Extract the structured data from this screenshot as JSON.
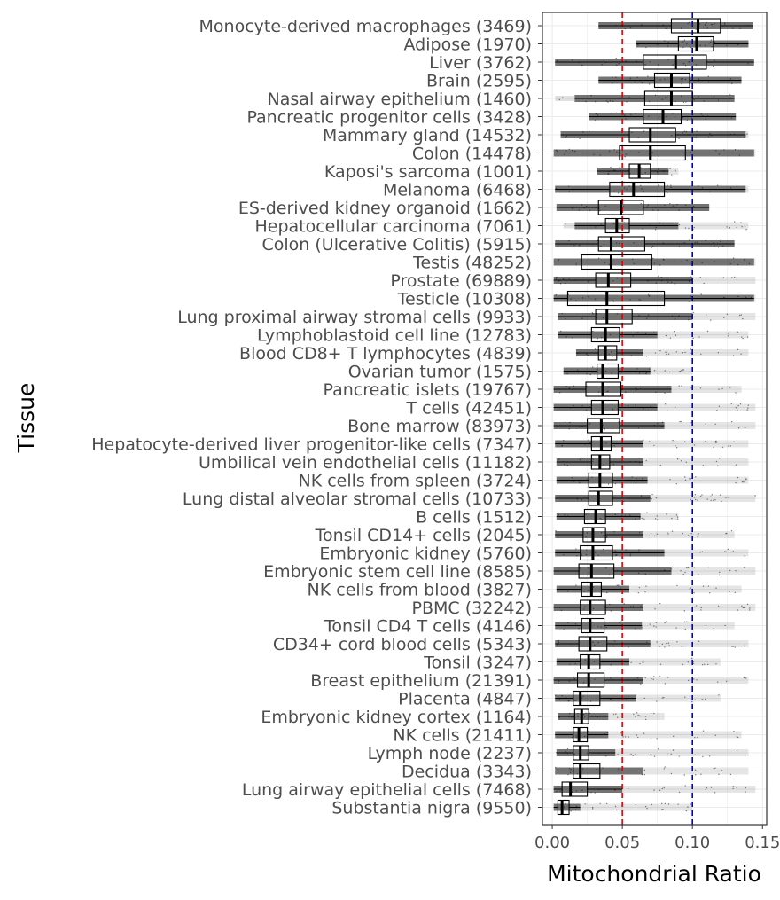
{
  "chart_data": {
    "type": "boxplot",
    "xlabel": "Mitochondrial Ratio",
    "ylabel": "Tissue",
    "xlim": [
      -0.007,
      0.153
    ],
    "x_ticks": [
      0.0,
      0.05,
      0.1,
      0.15
    ],
    "x_tick_labels": [
      "0.00",
      "0.05",
      "0.10",
      "0.15"
    ],
    "grid": true,
    "reference_lines": [
      {
        "value": 0.05,
        "color": "#e00000",
        "style": "dashed"
      },
      {
        "value": 0.1,
        "color": "#0000c0",
        "style": "dashed"
      }
    ],
    "colors": {
      "box": "#000000",
      "points": "#000000",
      "panel_border": "#333333",
      "grid": "#ebebeb"
    },
    "categories": [
      "Monocyte-derived macrophages (3469)",
      "Adipose (1970)",
      "Liver (3762)",
      "Brain (2595)",
      "Nasal airway epithelium (1460)",
      "Pancreatic progenitor cells (3428)",
      "Mammary gland (14532)",
      "Colon (14478)",
      "Kaposi's sarcoma (1001)",
      "Melanoma (6468)",
      "ES-derived kidney organoid (1662)",
      "Hepatocellular carcinoma (7061)",
      "Colon (Ulcerative Colitis) (5915)",
      "Testis (48252)",
      "Prostate (69889)",
      "Testicle (10308)",
      "Lung proximal airway stromal cells (9933)",
      "Lymphoblastoid cell line (12783)",
      "Blood CD8+ T lymphocytes (4839)",
      "Ovarian tumor (1575)",
      "Pancreatic islets (19767)",
      "T cells (42451)",
      "Bone marrow (83973)",
      "Hepatocyte-derived liver progenitor-like cells (7347)",
      "Umbilical vein endothelial cells (11182)",
      "NK cells from spleen (3724)",
      "Lung distal alveolar stromal cells (10733)",
      "B cells (1512)",
      "Tonsil CD14+ cells (2045)",
      "Embryonic kidney (5760)",
      "Embryonic stem cell line (8585)",
      "NK cells from blood (3827)",
      "PBMC (32242)",
      "Tonsil CD4 T cells (4146)",
      "CD34+ cord blood cells (5343)",
      "Tonsil (3247)",
      "Breast epithelium (21391)",
      "Placenta (4847)",
      "Embryonic kidney cortex (1164)",
      "NK cells (21411)",
      "Lymph node (2237)",
      "Decidua (3343)",
      "Lung airway epithelial cells (7468)",
      "Substantia nigra (9550)"
    ],
    "boxes": [
      {
        "q1": 0.085,
        "median": 0.104,
        "q3": 0.12,
        "wmin": 0.033,
        "wmax": 0.143,
        "pmin": 0.033,
        "pmax": 0.143
      },
      {
        "q1": 0.09,
        "median": 0.103,
        "q3": 0.115,
        "wmin": 0.06,
        "wmax": 0.14,
        "pmin": 0.06,
        "pmax": 0.14
      },
      {
        "q1": 0.065,
        "median": 0.088,
        "q3": 0.11,
        "wmin": 0.002,
        "wmax": 0.144,
        "pmin": 0.002,
        "pmax": 0.144
      },
      {
        "q1": 0.073,
        "median": 0.085,
        "q3": 0.098,
        "wmin": 0.033,
        "wmax": 0.135,
        "pmin": 0.033,
        "pmax": 0.135
      },
      {
        "q1": 0.066,
        "median": 0.085,
        "q3": 0.1,
        "wmin": 0.016,
        "wmax": 0.13,
        "pmin": 0.002,
        "pmax": 0.13
      },
      {
        "q1": 0.065,
        "median": 0.079,
        "q3": 0.092,
        "wmin": 0.026,
        "wmax": 0.131,
        "pmin": 0.026,
        "pmax": 0.131
      },
      {
        "q1": 0.055,
        "median": 0.07,
        "q3": 0.088,
        "wmin": 0.006,
        "wmax": 0.138,
        "pmin": 0.006,
        "pmax": 0.14
      },
      {
        "q1": 0.048,
        "median": 0.07,
        "q3": 0.095,
        "wmin": 0.001,
        "wmax": 0.144,
        "pmin": 0.001,
        "pmax": 0.145
      },
      {
        "q1": 0.055,
        "median": 0.062,
        "q3": 0.07,
        "wmin": 0.032,
        "wmax": 0.083,
        "pmin": 0.032,
        "pmax": 0.09
      },
      {
        "q1": 0.041,
        "median": 0.058,
        "q3": 0.08,
        "wmin": 0.002,
        "wmax": 0.138,
        "pmin": 0.002,
        "pmax": 0.14
      },
      {
        "q1": 0.033,
        "median": 0.049,
        "q3": 0.065,
        "wmin": 0.003,
        "wmax": 0.112,
        "pmin": 0.003,
        "pmax": 0.112
      },
      {
        "q1": 0.038,
        "median": 0.046,
        "q3": 0.055,
        "wmin": 0.016,
        "wmax": 0.09,
        "pmin": 0.008,
        "pmax": 0.14
      },
      {
        "q1": 0.033,
        "median": 0.042,
        "q3": 0.066,
        "wmin": 0.002,
        "wmax": 0.13,
        "pmin": 0.002,
        "pmax": 0.13
      },
      {
        "q1": 0.021,
        "median": 0.042,
        "q3": 0.071,
        "wmin": 0.001,
        "wmax": 0.144,
        "pmin": 0.001,
        "pmax": 0.145
      },
      {
        "q1": 0.031,
        "median": 0.04,
        "q3": 0.056,
        "wmin": 0.001,
        "wmax": 0.1,
        "pmin": 0.001,
        "pmax": 0.145
      },
      {
        "q1": 0.011,
        "median": 0.039,
        "q3": 0.08,
        "wmin": 0.001,
        "wmax": 0.144,
        "pmin": 0.001,
        "pmax": 0.145
      },
      {
        "q1": 0.031,
        "median": 0.039,
        "q3": 0.057,
        "wmin": 0.004,
        "wmax": 0.1,
        "pmin": 0.004,
        "pmax": 0.145
      },
      {
        "q1": 0.028,
        "median": 0.038,
        "q3": 0.048,
        "wmin": 0.004,
        "wmax": 0.075,
        "pmin": 0.004,
        "pmax": 0.14
      },
      {
        "q1": 0.033,
        "median": 0.038,
        "q3": 0.046,
        "wmin": 0.017,
        "wmax": 0.065,
        "pmin": 0.017,
        "pmax": 0.14
      },
      {
        "q1": 0.032,
        "median": 0.036,
        "q3": 0.047,
        "wmin": 0.008,
        "wmax": 0.07,
        "pmin": 0.008,
        "pmax": 0.1
      },
      {
        "q1": 0.024,
        "median": 0.036,
        "q3": 0.049,
        "wmin": 0.001,
        "wmax": 0.085,
        "pmin": 0.001,
        "pmax": 0.135
      },
      {
        "q1": 0.028,
        "median": 0.036,
        "q3": 0.047,
        "wmin": 0.001,
        "wmax": 0.075,
        "pmin": 0.001,
        "pmax": 0.145
      },
      {
        "q1": 0.025,
        "median": 0.035,
        "q3": 0.048,
        "wmin": 0.001,
        "wmax": 0.08,
        "pmin": 0.001,
        "pmax": 0.145
      },
      {
        "q1": 0.028,
        "median": 0.035,
        "q3": 0.042,
        "wmin": 0.002,
        "wmax": 0.065,
        "pmin": 0.002,
        "pmax": 0.14
      },
      {
        "q1": 0.028,
        "median": 0.034,
        "q3": 0.041,
        "wmin": 0.003,
        "wmax": 0.065,
        "pmin": 0.003,
        "pmax": 0.14
      },
      {
        "q1": 0.026,
        "median": 0.034,
        "q3": 0.043,
        "wmin": 0.003,
        "wmax": 0.068,
        "pmin": 0.003,
        "pmax": 0.14
      },
      {
        "q1": 0.026,
        "median": 0.033,
        "q3": 0.043,
        "wmin": 0.002,
        "wmax": 0.07,
        "pmin": 0.002,
        "pmax": 0.145
      },
      {
        "q1": 0.023,
        "median": 0.031,
        "q3": 0.038,
        "wmin": 0.003,
        "wmax": 0.063,
        "pmin": 0.003,
        "pmax": 0.09
      },
      {
        "q1": 0.022,
        "median": 0.029,
        "q3": 0.038,
        "wmin": 0.002,
        "wmax": 0.065,
        "pmin": 0.002,
        "pmax": 0.13
      },
      {
        "q1": 0.02,
        "median": 0.029,
        "q3": 0.043,
        "wmin": 0.002,
        "wmax": 0.08,
        "pmin": 0.002,
        "pmax": 0.14
      },
      {
        "q1": 0.019,
        "median": 0.028,
        "q3": 0.044,
        "wmin": 0.001,
        "wmax": 0.085,
        "pmin": 0.001,
        "pmax": 0.145
      },
      {
        "q1": 0.021,
        "median": 0.028,
        "q3": 0.035,
        "wmin": 0.003,
        "wmax": 0.055,
        "pmin": 0.003,
        "pmax": 0.135
      },
      {
        "q1": 0.02,
        "median": 0.027,
        "q3": 0.038,
        "wmin": 0.001,
        "wmax": 0.065,
        "pmin": 0.001,
        "pmax": 0.145
      },
      {
        "q1": 0.021,
        "median": 0.027,
        "q3": 0.037,
        "wmin": 0.002,
        "wmax": 0.064,
        "pmin": 0.002,
        "pmax": 0.13
      },
      {
        "q1": 0.019,
        "median": 0.027,
        "q3": 0.039,
        "wmin": 0.002,
        "wmax": 0.07,
        "pmin": 0.002,
        "pmax": 0.14
      },
      {
        "q1": 0.02,
        "median": 0.026,
        "q3": 0.034,
        "wmin": 0.003,
        "wmax": 0.055,
        "pmin": 0.003,
        "pmax": 0.12
      },
      {
        "q1": 0.018,
        "median": 0.026,
        "q3": 0.037,
        "wmin": 0.001,
        "wmax": 0.065,
        "pmin": 0.001,
        "pmax": 0.14
      },
      {
        "q1": 0.015,
        "median": 0.02,
        "q3": 0.034,
        "wmin": 0.002,
        "wmax": 0.06,
        "pmin": 0.002,
        "pmax": 0.12
      },
      {
        "q1": 0.016,
        "median": 0.021,
        "q3": 0.026,
        "wmin": 0.004,
        "wmax": 0.04,
        "pmin": 0.004,
        "pmax": 0.08
      },
      {
        "q1": 0.015,
        "median": 0.019,
        "q3": 0.025,
        "wmin": 0.002,
        "wmax": 0.04,
        "pmin": 0.002,
        "pmax": 0.135
      },
      {
        "q1": 0.015,
        "median": 0.02,
        "q3": 0.026,
        "wmin": 0.003,
        "wmax": 0.045,
        "pmin": 0.003,
        "pmax": 0.14
      },
      {
        "q1": 0.015,
        "median": 0.02,
        "q3": 0.034,
        "wmin": 0.002,
        "wmax": 0.065,
        "pmin": 0.002,
        "pmax": 0.14
      },
      {
        "q1": 0.007,
        "median": 0.013,
        "q3": 0.025,
        "wmin": 0.001,
        "wmax": 0.05,
        "pmin": 0.001,
        "pmax": 0.145
      },
      {
        "q1": 0.004,
        "median": 0.007,
        "q3": 0.012,
        "wmin": 0.001,
        "wmax": 0.02,
        "pmin": 0.001,
        "pmax": 0.1
      }
    ]
  }
}
